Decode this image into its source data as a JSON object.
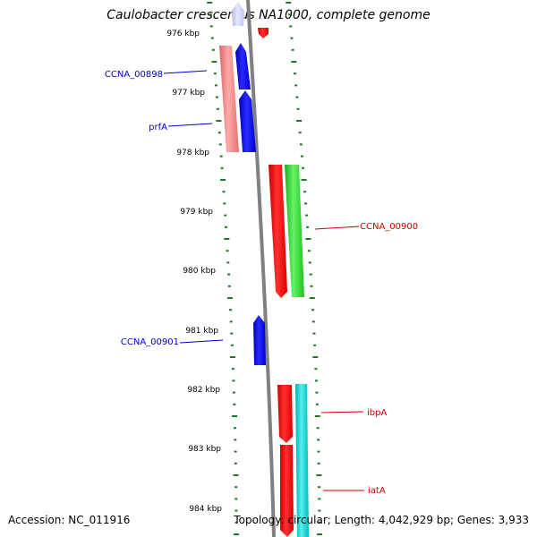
{
  "title": "Caulobacter crescentus NA1000, complete genome",
  "accession_label": "Accession: NC_011916",
  "topology_label": "Topology: circular; Length: 4,042,929 bp; Genes: 3,933",
  "colors": {
    "backbone": "#808080",
    "tick": "#1f7a1f",
    "kbp_text": "#000000",
    "label_blue": "#0000cc",
    "label_red": "#cc0000",
    "gene_blue": "#0000ee",
    "gene_red": "#ee0000",
    "gene_pink": "#ee7777",
    "gene_green": "#22cc22",
    "gene_cyan": "#00cccc",
    "gene_lavender": "#c8ccf4"
  },
  "kbp_labels": [
    "976 kbp",
    "977 kbp",
    "978 kbp",
    "979 kbp",
    "980 kbp",
    "981 kbp",
    "982 kbp",
    "983 kbp",
    "984 kbp"
  ],
  "genes": [
    {
      "label": "",
      "color": "gene_lavender",
      "direction": "up"
    },
    {
      "label": "",
      "color": "gene_red",
      "direction": "down"
    },
    {
      "label": "",
      "color": "gene_pink",
      "direction": "down"
    },
    {
      "label": "CCNA_00898",
      "color": "gene_blue",
      "direction": "up"
    },
    {
      "label": "prfA",
      "color": "gene_blue",
      "direction": "up"
    },
    {
      "label": "CCNA_00900",
      "color": "gene_red",
      "direction": "down"
    },
    {
      "label": "",
      "color": "gene_green",
      "direction": "down"
    },
    {
      "label": "CCNA_00901",
      "color": "gene_blue",
      "direction": "up"
    },
    {
      "label": "ibpA",
      "color": "gene_red",
      "direction": "down"
    },
    {
      "label": "iatA",
      "color": "gene_red",
      "direction": "down"
    },
    {
      "label": "",
      "color": "gene_cyan",
      "direction": "down"
    }
  ]
}
